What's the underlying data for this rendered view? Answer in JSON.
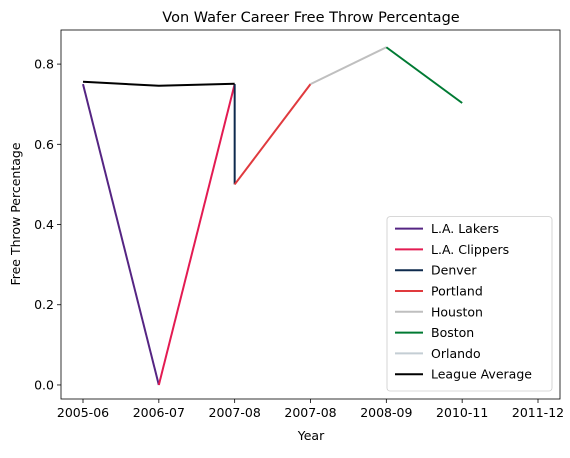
{
  "chart_data": {
    "type": "line",
    "title": "Von Wafer Career Free Throw Percentage",
    "xlabel": "Year",
    "ylabel": "Free Throw Percentage",
    "x_categories": [
      "2005-06",
      "2006-07",
      "2007-08",
      "2007-08",
      "2008-09",
      "2010-11",
      "2011-12"
    ],
    "xlim": [
      0,
      6
    ],
    "ylim": [
      -0.035,
      0.885
    ],
    "yticks": [
      0.0,
      0.2,
      0.4,
      0.6,
      0.8
    ],
    "ytick_labels": [
      "0.0",
      "0.2",
      "0.4",
      "0.6",
      "0.8"
    ],
    "grid": false,
    "legend_position": "lower right",
    "series": [
      {
        "name": "L.A. Lakers",
        "color": "#552583",
        "points": [
          [
            0,
            0.75
          ],
          [
            1,
            0.0
          ]
        ]
      },
      {
        "name": "L.A. Clippers",
        "color": "#e31b52",
        "points": [
          [
            1,
            0.0
          ],
          [
            2,
            0.75
          ]
        ]
      },
      {
        "name": "Denver",
        "color": "#0e2a4d",
        "points": [
          [
            2,
            0.75
          ],
          [
            2,
            0.5
          ]
        ]
      },
      {
        "name": "Portland",
        "color": "#e03a3e",
        "points": [
          [
            2,
            0.5
          ],
          [
            3,
            0.75
          ]
        ]
      },
      {
        "name": "Houston",
        "color": "#bfbfbf",
        "points": [
          [
            3,
            0.75
          ],
          [
            4,
            0.842
          ]
        ]
      },
      {
        "name": "Boston",
        "color": "#007a33",
        "points": [
          [
            4,
            0.842
          ],
          [
            5,
            0.703
          ]
        ]
      },
      {
        "name": "Orlando",
        "color": "#c4ced4",
        "points": []
      },
      {
        "name": "League Average",
        "color": "#000000",
        "points": [
          [
            0,
            0.756
          ],
          [
            1,
            0.746
          ],
          [
            2,
            0.751
          ]
        ]
      }
    ]
  }
}
